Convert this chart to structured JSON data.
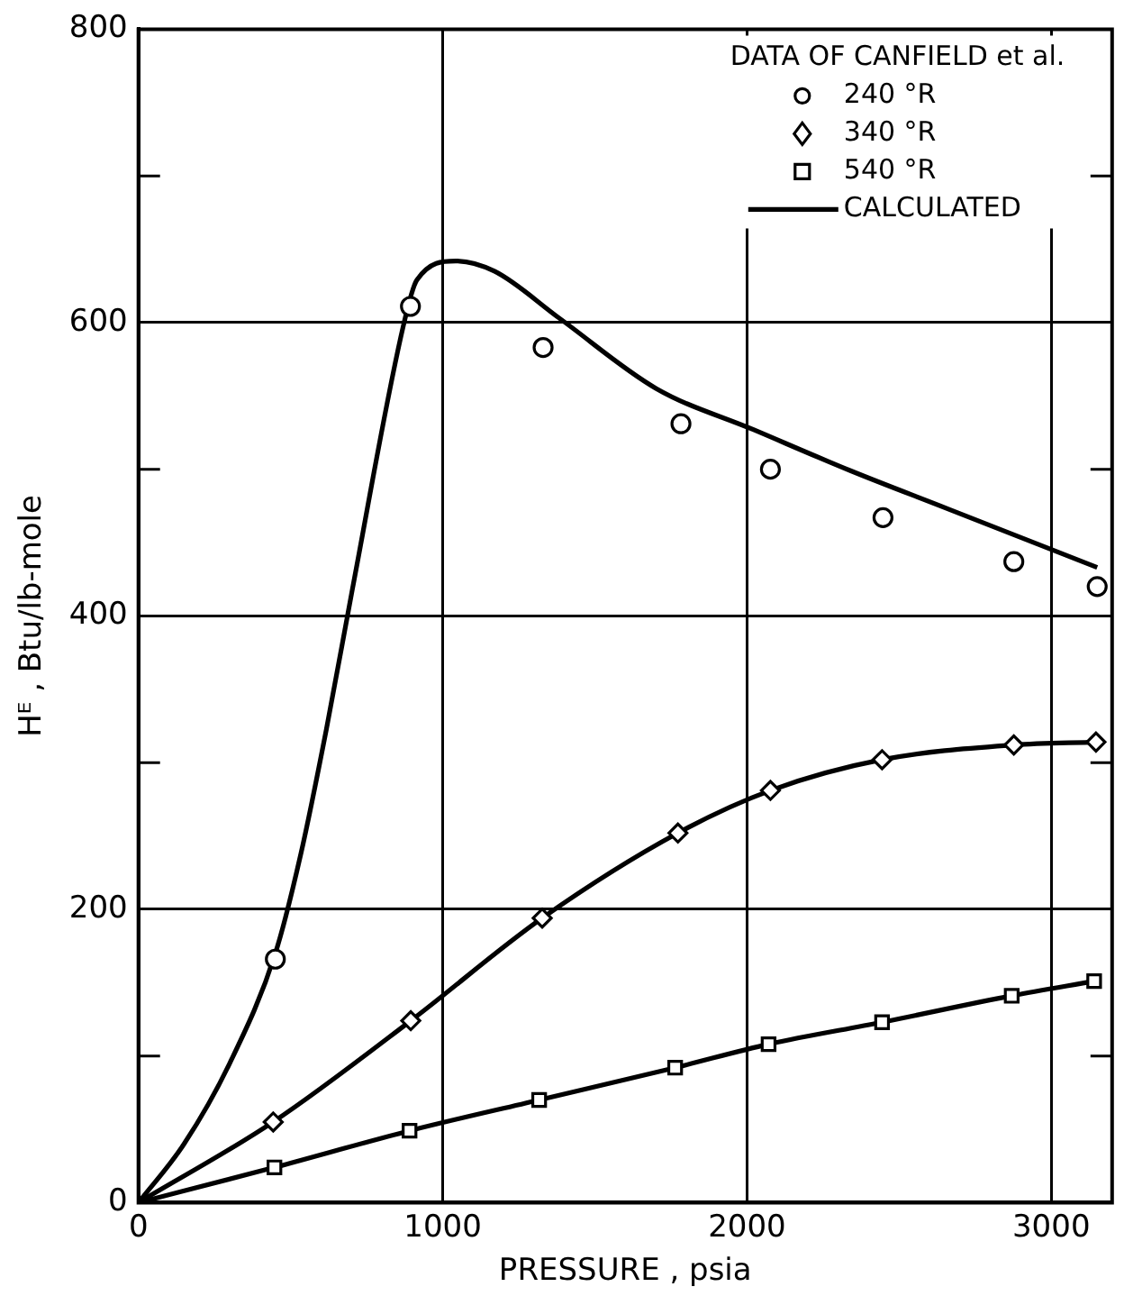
{
  "chart_data": {
    "type": "scatter",
    "xlabel": "PRESSURE , psia",
    "ylabel": "Hᴱ , Btu/lb-mole",
    "legend_title": "DATA OF CANFIELD et al.",
    "legend": "top right",
    "grid": true,
    "xlim": [
      0,
      3200
    ],
    "xticks": [
      0,
      1000,
      2000,
      3000
    ],
    "ylim": [
      0,
      800
    ],
    "yticks": [
      0,
      {
        "value": 100,
        "label": null
      },
      200,
      {
        "value": 300,
        "label": null
      },
      400,
      {
        "value": 500,
        "label": null
      },
      600,
      {
        "value": 700,
        "label": null
      },
      800
    ],
    "series": [
      {
        "name": "240 °R",
        "type": "scatter",
        "marker": "circle",
        "color": "#000000",
        "x": [
          450,
          894,
          1330,
          1783,
          2077,
          2447,
          2877,
          3151
        ],
        "values": [
          166,
          611,
          583,
          531,
          500,
          467,
          437,
          420
        ]
      },
      {
        "name": "340 °R",
        "type": "scatter",
        "marker": "diamond",
        "color": "#000000",
        "x": [
          443,
          895,
          1327,
          1773,
          2077,
          2444,
          2877,
          3147
        ],
        "values": [
          55,
          124,
          194,
          252,
          281,
          302,
          312,
          314
        ]
      },
      {
        "name": "540 °R",
        "type": "scatter",
        "marker": "square",
        "color": "#000000",
        "x": [
          447,
          891,
          1317,
          1764,
          2071,
          2444,
          2870,
          3141
        ],
        "values": [
          24,
          49,
          70,
          92,
          108,
          123,
          141,
          151
        ]
      },
      {
        "name": "CALCULATED",
        "type": "line",
        "marker": "none",
        "line_style": "solid",
        "color": "#000000",
        "x": [
          0,
          150,
          300,
          450,
          533,
          618,
          703,
          872,
          915,
          1043,
          1170,
          1383,
          1702,
          2021,
          2340,
          2660,
          3151
        ],
        "values": [
          0,
          40,
          95,
          170,
          237,
          323,
          418,
          599,
          629,
          642,
          635,
          603,
          555,
          527,
          499,
          473,
          433
        ]
      },
      {
        "type": "line",
        "marker": "none",
        "line_style": "solid",
        "color": "#000000",
        "x": [
          0,
          443,
          895,
          1327,
          1773,
          2077,
          2444,
          2877,
          3147
        ],
        "values": [
          0,
          55,
          124,
          194,
          252,
          281,
          302,
          312,
          314
        ]
      },
      {
        "type": "line",
        "marker": "none",
        "line_style": "solid",
        "color": "#000000",
        "x": [
          0,
          447,
          891,
          1317,
          1764,
          2071,
          2444,
          2870,
          3141
        ],
        "values": [
          0,
          24,
          49,
          70,
          92,
          108,
          123,
          141,
          151
        ]
      }
    ]
  }
}
